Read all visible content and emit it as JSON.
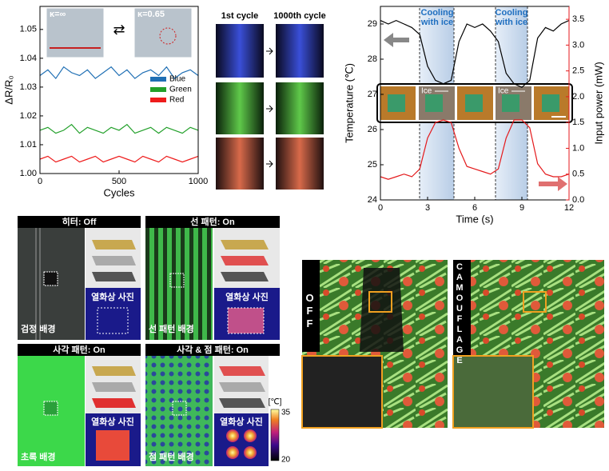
{
  "chart_data": [
    {
      "type": "line",
      "x_label": "Cycles",
      "y_label": "ΔR/R₀",
      "x": [
        0,
        50,
        100,
        150,
        200,
        250,
        300,
        350,
        400,
        450,
        500,
        550,
        600,
        650,
        700,
        750,
        800,
        850,
        900,
        950,
        1000
      ],
      "series": [
        {
          "name": "Blue",
          "color": "#1f6fb4",
          "values": [
            1.034,
            1.036,
            1.033,
            1.037,
            1.035,
            1.034,
            1.036,
            1.033,
            1.035,
            1.037,
            1.034,
            1.036,
            1.033,
            1.035,
            1.036,
            1.034,
            1.037,
            1.033,
            1.035,
            1.036,
            1.034
          ]
        },
        {
          "name": "Green",
          "color": "#22a02a",
          "values": [
            1.015,
            1.016,
            1.014,
            1.015,
            1.017,
            1.014,
            1.016,
            1.015,
            1.014,
            1.016,
            1.015,
            1.017,
            1.014,
            1.015,
            1.016,
            1.014,
            1.016,
            1.015,
            1.014,
            1.016,
            1.015
          ]
        },
        {
          "name": "Red",
          "color": "#ee1c1c",
          "values": [
            1.005,
            1.006,
            1.004,
            1.005,
            1.006,
            1.004,
            1.005,
            1.006,
            1.004,
            1.005,
            1.006,
            1.005,
            1.004,
            1.006,
            1.005,
            1.004,
            1.006,
            1.005,
            1.004,
            1.005,
            1.006
          ]
        }
      ],
      "xlim": [
        0,
        1000
      ],
      "xticks": [
        0,
        500,
        1000
      ],
      "ylim": [
        1.0,
        1.058
      ],
      "yticks": [
        {
          "value": 1.0,
          "label": "1.00"
        },
        1.01,
        1.02,
        1.03,
        1.04,
        1.05
      ],
      "legend": "center right",
      "annotations": [
        "κ=∞",
        "κ=0.65"
      ]
    },
    {
      "type": "line",
      "x_label": "Time (s)",
      "y_label": "Temperature (℃)",
      "y2_label": "Input power (mW)",
      "x": [
        0,
        0.5,
        1,
        1.5,
        2,
        2.5,
        3,
        3.5,
        4,
        4.5,
        5,
        5.5,
        6,
        6.5,
        7,
        7.5,
        8,
        8.5,
        9,
        9.5,
        10,
        10.5,
        11,
        11.5,
        12
      ],
      "series": [
        {
          "color": "#000000",
          "values": [
            29.1,
            29.0,
            29.1,
            29.0,
            28.9,
            28.7,
            27.8,
            27.4,
            27.3,
            27.4,
            28.5,
            29.0,
            28.9,
            29.0,
            28.8,
            28.5,
            27.6,
            27.3,
            27.2,
            27.4,
            28.6,
            28.9,
            28.8,
            29.0,
            29.1
          ]
        },
        {
          "color": "#e41a1c",
          "axis": "y2",
          "values": [
            0.45,
            0.4,
            0.45,
            0.5,
            0.45,
            0.6,
            1.2,
            1.5,
            1.55,
            1.5,
            1.0,
            0.65,
            0.6,
            0.55,
            0.5,
            0.6,
            1.2,
            1.55,
            1.55,
            1.4,
            0.7,
            0.5,
            0.45,
            0.45,
            0.5
          ]
        }
      ],
      "xlim": [
        0,
        12
      ],
      "xticks": [
        0,
        3,
        6,
        9,
        12
      ],
      "ylim": [
        24,
        29.5
      ],
      "yticks": [
        24,
        25,
        26,
        27,
        28,
        29
      ],
      "y2lim": [
        0,
        3.75
      ],
      "y2ticks": [
        {
          "value": 0,
          "label": "0.0"
        },
        0.5,
        {
          "value": 1,
          "label": "1.0"
        },
        1.5,
        {
          "value": 2,
          "label": "2.0"
        },
        2.5,
        {
          "value": 3,
          "label": "3.0"
        },
        3.5
      ],
      "annotations": [
        "Cooling with ice",
        "Cooling with ice",
        "Ice",
        "Ice"
      ]
    }
  ],
  "cycle_photos": {
    "headers": [
      "1st cycle",
      "1000th cycle"
    ]
  },
  "heater_panels": [
    {
      "title": "히터: Off",
      "background": "검정 배경",
      "thermal": "열화상 사진"
    },
    {
      "title": "선 패턴:  On",
      "background": "선 패턴 배경",
      "thermal": "열화상 사진"
    },
    {
      "title": "사각 패턴: On",
      "background": "초록 배경",
      "thermal": "열화상 사진"
    },
    {
      "title": "사각 & 점 패턴: On",
      "background": "점 패턴 배경",
      "thermal": "열화상 사진"
    }
  ],
  "colorbar": {
    "unit": "[℃]",
    "max": 35,
    "min": 20
  },
  "camouflage": {
    "off": "OFF",
    "on": "CAMOUFLAGE"
  }
}
